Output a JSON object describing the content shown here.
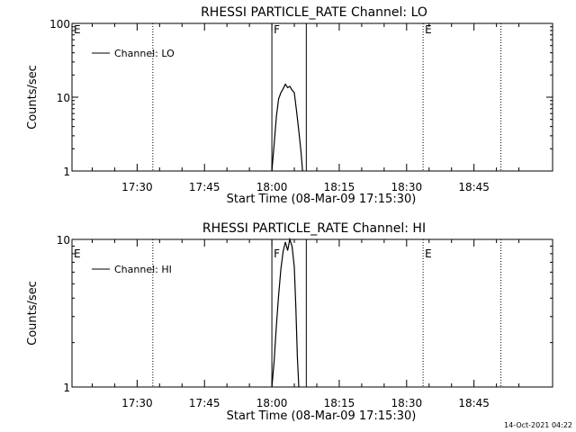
{
  "footer_timestamp": "14-Oct-2021 04:22",
  "chart_data": [
    {
      "type": "line",
      "title": "RHESSI PARTICLE_RATE Channel: LO",
      "xlabel": "Start Time (08-Mar-09 17:15:30)",
      "ylabel": "Counts/sec",
      "yscale": "log",
      "ylim": [
        1,
        100
      ],
      "xlim": [
        "17:15:30",
        "19:02:30"
      ],
      "x_ticks": [
        "17:30",
        "17:45",
        "18:00",
        "18:15",
        "18:30",
        "18:45"
      ],
      "y_ticks": [
        "1",
        "10",
        "100"
      ],
      "legend": {
        "label": "Channel: LO",
        "placement": "top-left"
      },
      "markers": [
        {
          "label": "E",
          "time": "17:15:30",
          "style": "none"
        },
        {
          "label": "",
          "time": "17:33:30",
          "style": "dotted"
        },
        {
          "label": "F",
          "time": "18:00:00",
          "style": "solid"
        },
        {
          "label": "",
          "time": "18:07:40",
          "style": "solid"
        },
        {
          "label": "E",
          "time": "18:33:40",
          "style": "dotted"
        },
        {
          "label": "",
          "time": "18:51:00",
          "style": "dotted"
        }
      ],
      "series": [
        {
          "name": "Channel: LO",
          "x": [
            "18:00:00",
            "18:00:30",
            "18:01:00",
            "18:01:30",
            "18:02:00",
            "18:02:30",
            "18:03:00",
            "18:03:30",
            "18:04:00",
            "18:04:30",
            "18:05:00",
            "18:05:30",
            "18:06:00",
            "18:06:30",
            "18:06:50"
          ],
          "y": [
            1.0,
            2.3,
            5.5,
            9.5,
            11.5,
            13.0,
            15.0,
            13.5,
            14.0,
            12.5,
            11.5,
            6.5,
            3.5,
            1.8,
            1.0
          ]
        }
      ]
    },
    {
      "type": "line",
      "title": "RHESSI PARTICLE_RATE Channel: HI",
      "xlabel": "Start Time (08-Mar-09 17:15:30)",
      "ylabel": "Counts/sec",
      "yscale": "log",
      "ylim": [
        1,
        10
      ],
      "xlim": [
        "17:15:30",
        "19:02:30"
      ],
      "x_ticks": [
        "17:30",
        "17:45",
        "18:00",
        "18:15",
        "18:30",
        "18:45"
      ],
      "y_ticks": [
        "1",
        "10"
      ],
      "legend": {
        "label": "Channel: HI",
        "placement": "top-left"
      },
      "markers": [
        {
          "label": "E",
          "time": "17:15:30",
          "style": "none"
        },
        {
          "label": "",
          "time": "17:33:30",
          "style": "dotted"
        },
        {
          "label": "F",
          "time": "18:00:00",
          "style": "solid"
        },
        {
          "label": "",
          "time": "18:07:40",
          "style": "solid"
        },
        {
          "label": "E",
          "time": "18:33:40",
          "style": "dotted"
        },
        {
          "label": "",
          "time": "18:51:00",
          "style": "dotted"
        }
      ],
      "series": [
        {
          "name": "Channel: HI",
          "x": [
            "18:00:00",
            "18:00:30",
            "18:01:00",
            "18:01:30",
            "18:02:00",
            "18:02:30",
            "18:03:00",
            "18:03:30",
            "18:04:00",
            "18:04:30",
            "18:05:00",
            "18:05:20",
            "18:05:40",
            "18:06:00"
          ],
          "y": [
            1.0,
            1.5,
            2.6,
            4.2,
            6.3,
            8.3,
            9.6,
            8.4,
            10.0,
            9.0,
            6.5,
            3.5,
            1.6,
            1.0
          ]
        }
      ]
    }
  ]
}
